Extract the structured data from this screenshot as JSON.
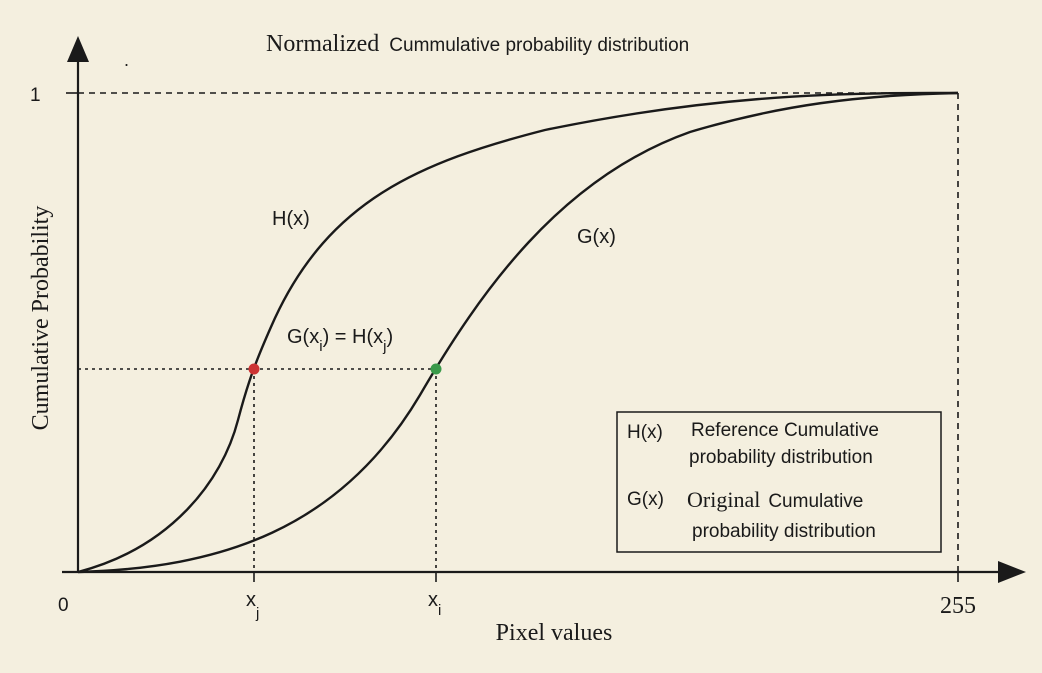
{
  "title_prefix": "Normalized",
  "title_rest": "Cummulative probability distribution",
  "y_axis_label": "Cumulative Probability",
  "x_axis_label": "Pixel values",
  "y_tick_top": "1",
  "x_tick_zero": "0",
  "x_tick_max": "255",
  "xj_label": "x",
  "xj_sub": "j",
  "xi_label": "x",
  "xi_sub": "i",
  "curve_h_label": "H(x)",
  "curve_g_label": "G(x)",
  "equation": {
    "part1": "G(x",
    "sub1": "i",
    "part2": ") = H(x",
    "sub2": "j",
    "part3": ")"
  },
  "legend": {
    "h_key": "H(x)",
    "h_line1": "Reference Cumulative",
    "h_line2": "probability distribution",
    "g_key": "G(x)",
    "g_line1_word": "Original",
    "g_line1_rest": "Cumulative",
    "g_line2": "probability distribution"
  },
  "colors": {
    "background": "#f4efdf",
    "ink": "#1a1a1a",
    "point_h": "#cc3333",
    "point_g": "#3a9a4a"
  },
  "stray_mark": "."
}
